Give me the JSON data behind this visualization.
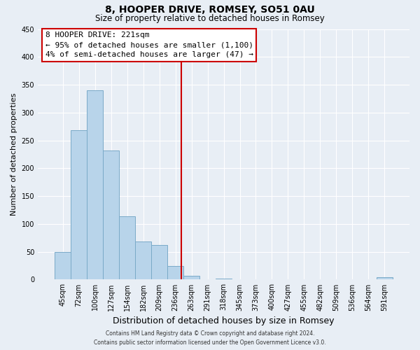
{
  "title": "8, HOOPER DRIVE, ROMSEY, SO51 0AU",
  "subtitle": "Size of property relative to detached houses in Romsey",
  "xlabel": "Distribution of detached houses by size in Romsey",
  "ylabel": "Number of detached properties",
  "bar_labels": [
    "45sqm",
    "72sqm",
    "100sqm",
    "127sqm",
    "154sqm",
    "182sqm",
    "209sqm",
    "236sqm",
    "263sqm",
    "291sqm",
    "318sqm",
    "345sqm",
    "373sqm",
    "400sqm",
    "427sqm",
    "455sqm",
    "482sqm",
    "509sqm",
    "536sqm",
    "564sqm",
    "591sqm"
  ],
  "bar_heights": [
    50,
    268,
    340,
    232,
    114,
    68,
    62,
    25,
    7,
    0,
    2,
    0,
    0,
    0,
    0,
    0,
    0,
    0,
    0,
    0,
    4
  ],
  "bar_color": "#b8d4ea",
  "bar_edge_color": "#7aaac8",
  "vline_x": 7.35,
  "vline_color": "#cc0000",
  "annotation_title": "8 HOOPER DRIVE: 221sqm",
  "annotation_line1": "← 95% of detached houses are smaller (1,100)",
  "annotation_line2": "4% of semi-detached houses are larger (47) →",
  "annotation_box_color": "#ffffff",
  "annotation_box_edge": "#cc0000",
  "ylim": [
    0,
    450
  ],
  "yticks": [
    0,
    50,
    100,
    150,
    200,
    250,
    300,
    350,
    400,
    450
  ],
  "background_color": "#e8eef5",
  "grid_color": "#ffffff",
  "footer_line1": "Contains HM Land Registry data © Crown copyright and database right 2024.",
  "footer_line2": "Contains public sector information licensed under the Open Government Licence v3.0."
}
